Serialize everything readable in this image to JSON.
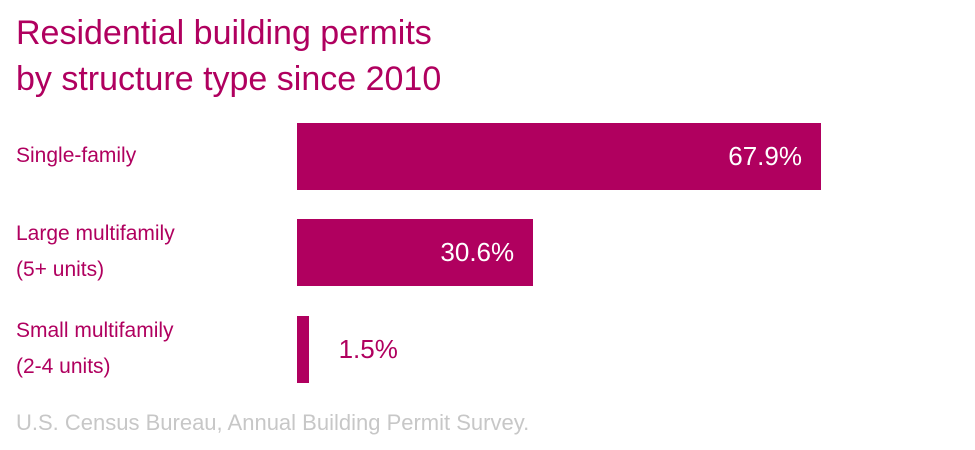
{
  "chart_data": {
    "type": "bar",
    "orientation": "horizontal",
    "title": [
      "Residential building permits",
      "by structure type since 2010"
    ],
    "categories": [
      {
        "label": "Single-family",
        "sublabel": ""
      },
      {
        "label": "Large multifamily",
        "sublabel": "(5+ units)"
      },
      {
        "label": "Small multifamily",
        "sublabel": "(2-4 units)"
      }
    ],
    "values": [
      67.9,
      30.6,
      1.5
    ],
    "value_labels": [
      "67.9%",
      "30.6%",
      "1.5%"
    ],
    "unit": "%",
    "xlim": [
      0,
      100
    ],
    "grid": false,
    "legend": "none",
    "bar_color": "#b0005f"
  },
  "source": "U.S. Census Bureau, Annual Building Permit Survey.",
  "colors": {
    "accent": "#b0005f",
    "source_text": "#c7c7c7"
  }
}
